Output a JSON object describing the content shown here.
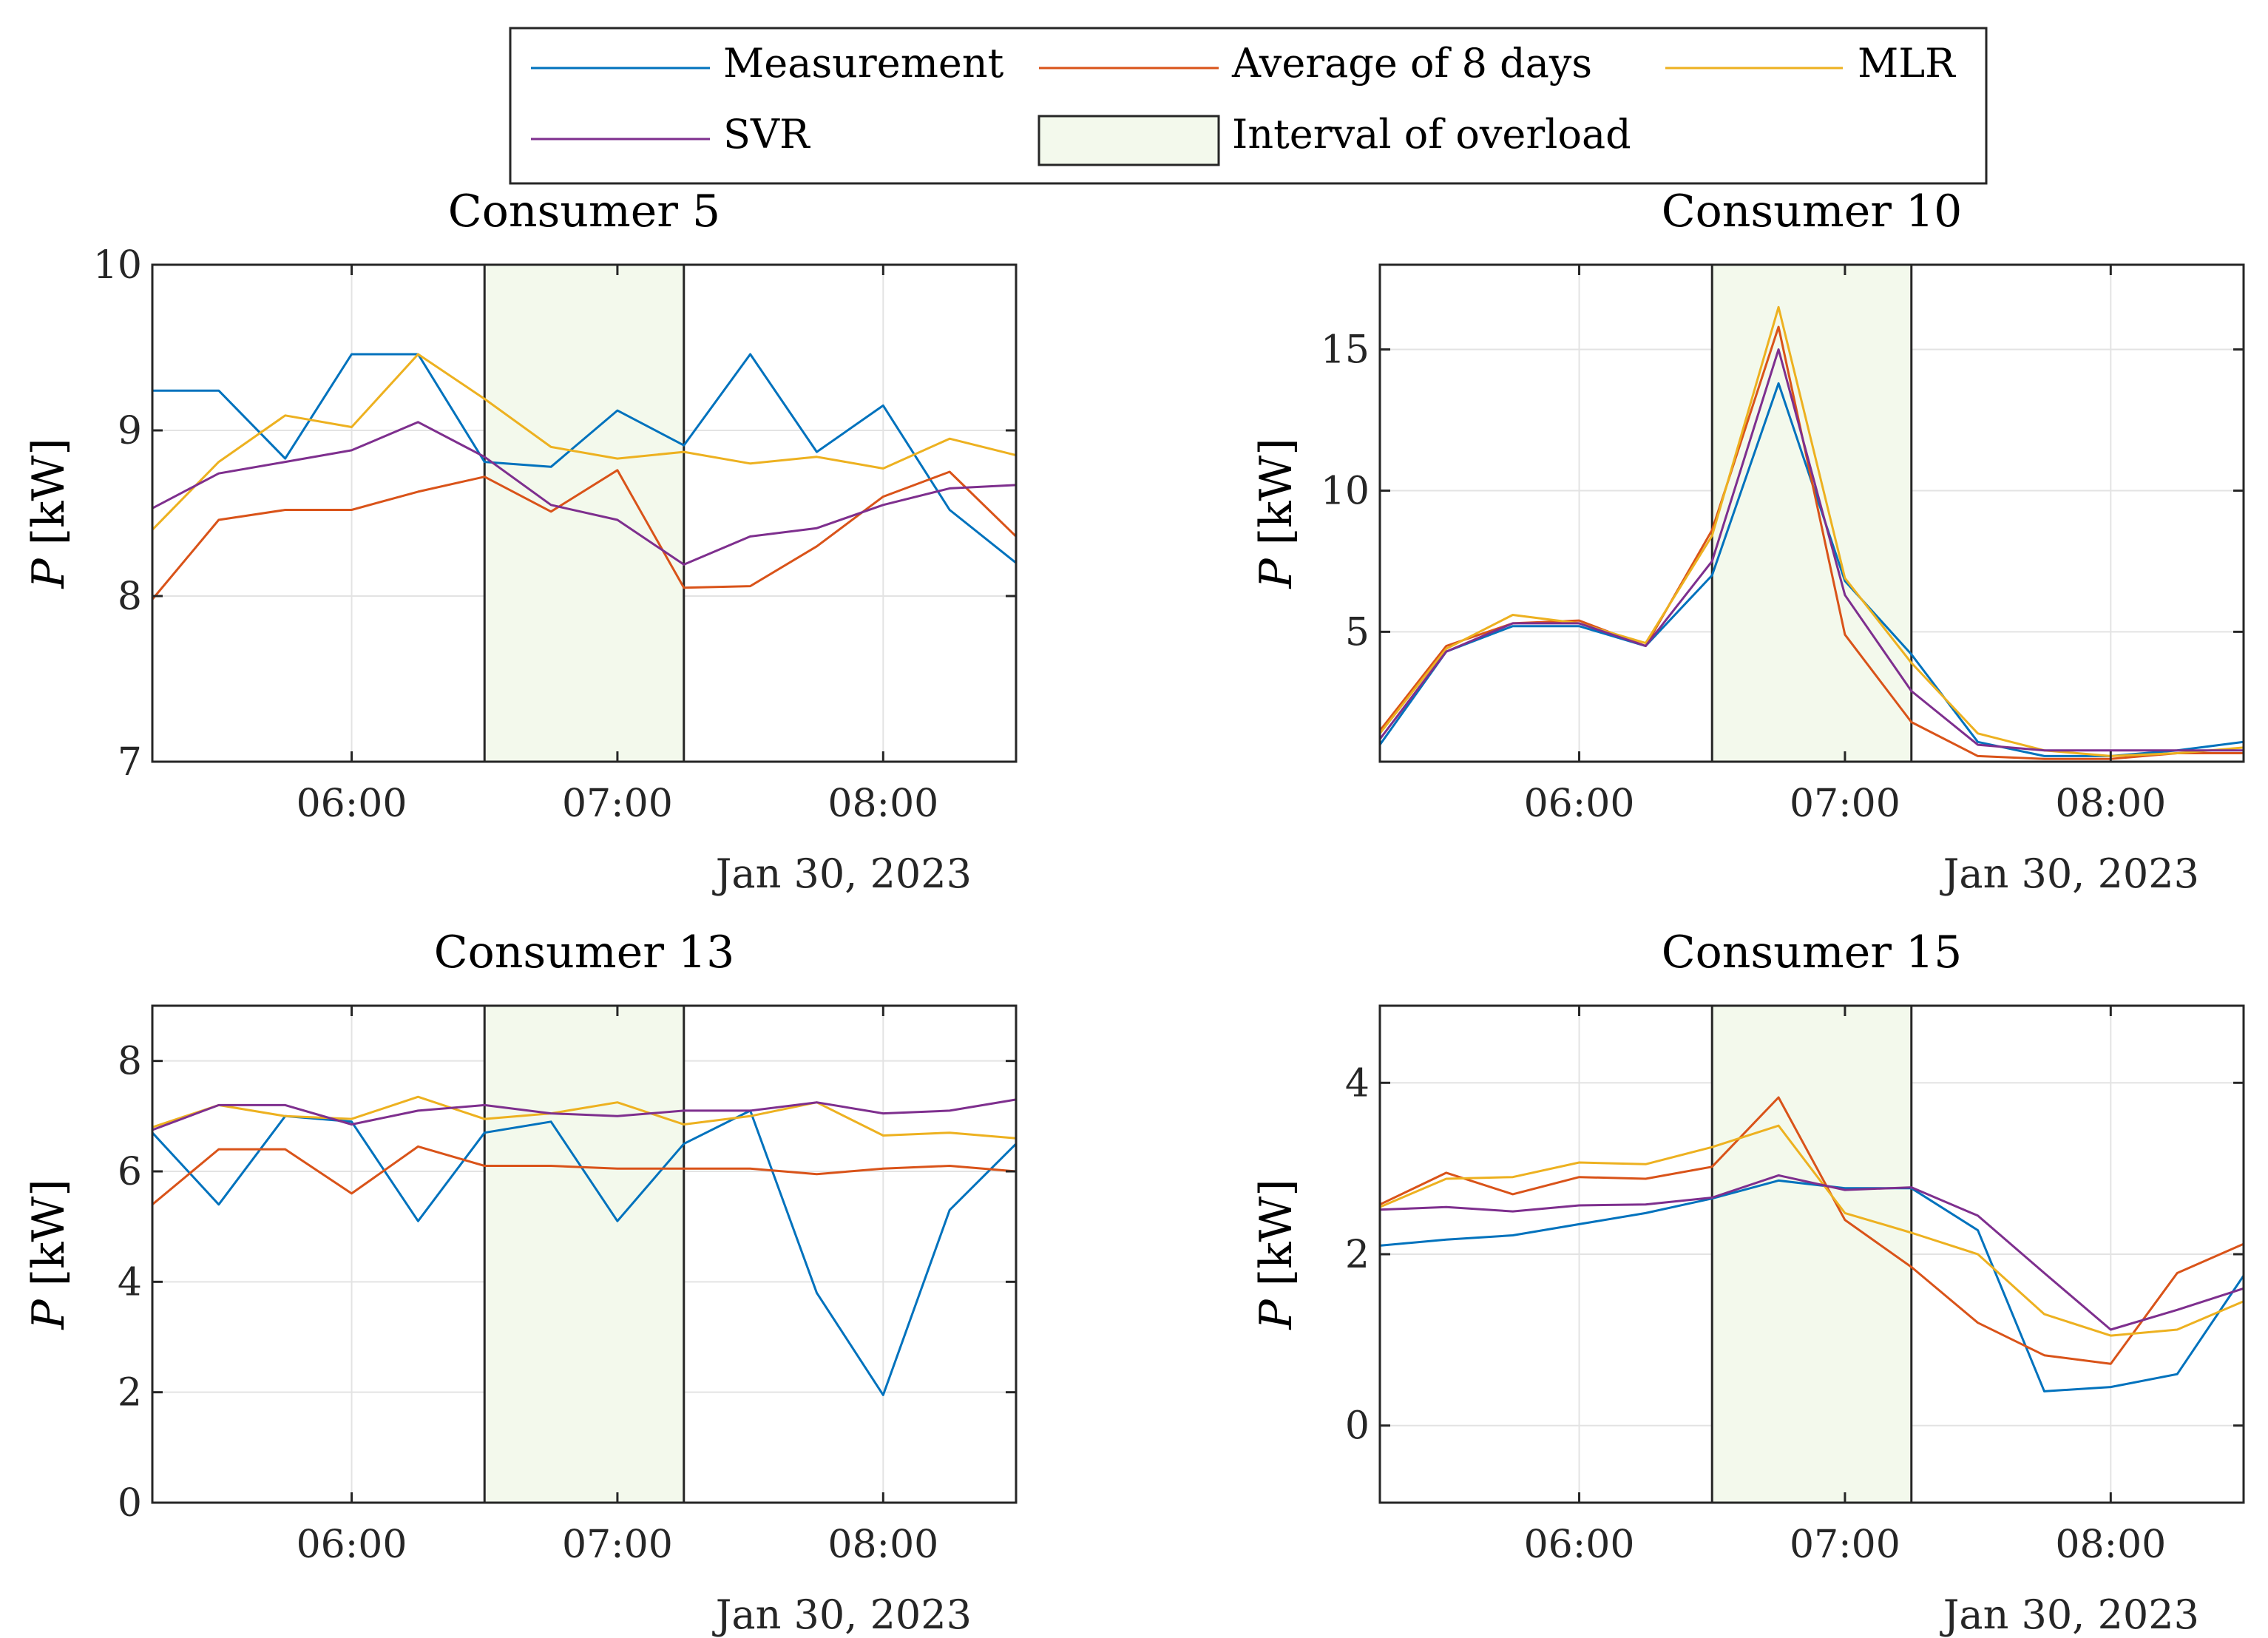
{
  "legend": {
    "items": [
      {
        "label": "Measurement",
        "color": "#0072BD",
        "kind": "line"
      },
      {
        "label": "Average of 8 days",
        "color": "#D95319",
        "kind": "line"
      },
      {
        "label": "MLR",
        "color": "#EDB120",
        "kind": "line"
      },
      {
        "label": "SVR",
        "color": "#7E2F8E",
        "kind": "line"
      },
      {
        "label": "Interval of overload",
        "color": "#F3F9EC",
        "kind": "patch"
      }
    ]
  },
  "chart_data": [
    {
      "type": "line",
      "title": "Consumer 5",
      "xlabel": "",
      "ylabel_var": "P",
      "ylabel_unit": "[kW]",
      "date_label": "Jan 30, 2023",
      "x": [
        5.25,
        5.5,
        5.75,
        6.0,
        6.25,
        6.5,
        6.75,
        7.0,
        7.25,
        7.5,
        7.75,
        8.0,
        8.25,
        8.5
      ],
      "xlim": [
        5.25,
        8.5
      ],
      "xticks": [
        6,
        7,
        8
      ],
      "xtick_labels": [
        "06:00",
        "07:00",
        "08:00"
      ],
      "ylim": [
        7,
        10
      ],
      "yticks": [
        7,
        8,
        9,
        10
      ],
      "ytick_labels": [
        "7",
        "8",
        "9",
        "10"
      ],
      "overload": [
        6.5,
        7.25
      ],
      "series": [
        {
          "name": "Measurement",
          "color": "#0072BD",
          "values": [
            9.24,
            9.24,
            8.83,
            9.46,
            9.46,
            8.81,
            8.78,
            9.12,
            8.91,
            9.46,
            8.87,
            9.15,
            8.52,
            8.2
          ]
        },
        {
          "name": "Average of 8 days",
          "color": "#D95319",
          "values": [
            7.98,
            8.46,
            8.52,
            8.52,
            8.63,
            8.72,
            8.51,
            8.76,
            8.05,
            8.06,
            8.3,
            8.6,
            8.75,
            8.36
          ]
        },
        {
          "name": "MLR",
          "color": "#EDB120",
          "values": [
            8.4,
            8.81,
            9.09,
            9.02,
            9.46,
            9.19,
            8.9,
            8.83,
            8.87,
            8.8,
            8.84,
            8.77,
            8.95,
            8.85
          ]
        },
        {
          "name": "SVR",
          "color": "#7E2F8E",
          "values": [
            8.53,
            8.74,
            8.81,
            8.88,
            9.05,
            8.84,
            8.55,
            8.46,
            8.19,
            8.36,
            8.41,
            8.55,
            8.65,
            8.67
          ]
        }
      ]
    },
    {
      "type": "line",
      "title": "Consumer 10",
      "xlabel": "",
      "ylabel_var": "P",
      "ylabel_unit": "[kW]",
      "date_label": "Jan 30, 2023",
      "x": [
        5.25,
        5.5,
        5.75,
        6.0,
        6.25,
        6.5,
        6.75,
        7.0,
        7.25,
        7.5,
        7.75,
        8.0,
        8.25,
        8.5
      ],
      "xlim": [
        5.25,
        8.5
      ],
      "xticks": [
        6,
        7,
        8
      ],
      "xtick_labels": [
        "06:00",
        "07:00",
        "08:00"
      ],
      "ylim": [
        0.4,
        18.0
      ],
      "yticks": [
        5,
        10,
        15
      ],
      "ytick_labels": [
        "5",
        "10",
        "15"
      ],
      "overload": [
        6.5,
        7.25
      ],
      "series": [
        {
          "name": "Measurement",
          "color": "#0072BD",
          "values": [
            1.0,
            4.3,
            5.2,
            5.2,
            4.5,
            7.0,
            13.8,
            6.8,
            4.2,
            1.1,
            0.6,
            0.6,
            0.8,
            1.1
          ]
        },
        {
          "name": "Average of 8 days",
          "color": "#D95319",
          "values": [
            1.5,
            4.5,
            5.3,
            5.4,
            4.5,
            8.6,
            15.8,
            4.9,
            1.8,
            0.6,
            0.5,
            0.5,
            0.7,
            0.7
          ]
        },
        {
          "name": "MLR",
          "color": "#EDB120",
          "values": [
            1.4,
            4.4,
            5.6,
            5.3,
            4.6,
            8.4,
            16.5,
            6.9,
            3.9,
            1.4,
            0.8,
            0.6,
            0.7,
            0.9
          ]
        },
        {
          "name": "SVR",
          "color": "#7E2F8E",
          "values": [
            1.2,
            4.3,
            5.3,
            5.3,
            4.5,
            7.5,
            15.0,
            6.3,
            2.9,
            1.0,
            0.8,
            0.8,
            0.8,
            0.8
          ]
        }
      ]
    },
    {
      "type": "line",
      "title": "Consumer 13",
      "xlabel": "",
      "ylabel_var": "P",
      "ylabel_unit": "[kW]",
      "date_label": "Jan 30, 2023",
      "x": [
        5.25,
        5.5,
        5.75,
        6.0,
        6.25,
        6.5,
        6.75,
        7.0,
        7.25,
        7.5,
        7.75,
        8.0,
        8.25,
        8.5
      ],
      "xlim": [
        5.25,
        8.5
      ],
      "xticks": [
        6,
        7,
        8
      ],
      "xtick_labels": [
        "06:00",
        "07:00",
        "08:00"
      ],
      "ylim": [
        0,
        9
      ],
      "yticks": [
        0,
        2,
        4,
        6,
        8
      ],
      "ytick_labels": [
        "0",
        "2",
        "4",
        "6",
        "8"
      ],
      "overload": [
        6.5,
        7.25
      ],
      "series": [
        {
          "name": "Measurement",
          "color": "#0072BD",
          "values": [
            6.7,
            5.4,
            7.0,
            6.9,
            5.1,
            6.7,
            6.9,
            5.1,
            6.5,
            7.1,
            3.8,
            1.95,
            5.3,
            6.5
          ]
        },
        {
          "name": "Average of 8 days",
          "color": "#D95319",
          "values": [
            5.4,
            6.4,
            6.4,
            5.6,
            6.45,
            6.1,
            6.1,
            6.05,
            6.05,
            6.05,
            5.95,
            6.05,
            6.1,
            6.0
          ]
        },
        {
          "name": "MLR",
          "color": "#EDB120",
          "values": [
            6.8,
            7.2,
            7.0,
            6.95,
            7.35,
            6.95,
            7.05,
            7.25,
            6.85,
            7.0,
            7.25,
            6.65,
            6.7,
            6.6
          ]
        },
        {
          "name": "SVR",
          "color": "#7E2F8E",
          "values": [
            6.75,
            7.2,
            7.2,
            6.85,
            7.1,
            7.2,
            7.05,
            7.0,
            7.1,
            7.1,
            7.25,
            7.05,
            7.1,
            7.3
          ]
        }
      ]
    },
    {
      "type": "line",
      "title": "Consumer 15",
      "xlabel": "",
      "ylabel_var": "P",
      "ylabel_unit": "[kW]",
      "date_label": "Jan 30, 2023",
      "x": [
        5.25,
        5.5,
        5.75,
        6.0,
        6.25,
        6.5,
        6.75,
        7.0,
        7.25,
        7.5,
        7.75,
        8.0,
        8.25,
        8.5
      ],
      "xlim": [
        5.25,
        8.5
      ],
      "xticks": [
        6,
        7,
        8
      ],
      "xtick_labels": [
        "06:00",
        "07:00",
        "08:00"
      ],
      "ylim": [
        -0.9,
        4.9
      ],
      "yticks": [
        0,
        2,
        4
      ],
      "ytick_labels": [
        "0",
        "2",
        "4"
      ],
      "overload": [
        6.5,
        7.25
      ],
      "series": [
        {
          "name": "Measurement",
          "color": "#0072BD",
          "values": [
            2.1,
            2.17,
            2.22,
            2.35,
            2.48,
            2.65,
            2.86,
            2.77,
            2.77,
            2.28,
            0.4,
            0.45,
            0.6,
            1.75
          ]
        },
        {
          "name": "Average of 8 days",
          "color": "#D95319",
          "values": [
            2.58,
            2.95,
            2.7,
            2.9,
            2.88,
            3.02,
            3.83,
            2.4,
            1.85,
            1.2,
            0.82,
            0.72,
            1.78,
            2.12
          ]
        },
        {
          "name": "MLR",
          "color": "#EDB120",
          "values": [
            2.55,
            2.88,
            2.9,
            3.07,
            3.05,
            3.25,
            3.5,
            2.48,
            2.25,
            2.0,
            1.3,
            1.05,
            1.12,
            1.45
          ]
        },
        {
          "name": "SVR",
          "color": "#7E2F8E",
          "values": [
            2.52,
            2.55,
            2.5,
            2.57,
            2.58,
            2.66,
            2.92,
            2.75,
            2.78,
            2.45,
            1.78,
            1.12,
            1.35,
            1.6
          ]
        }
      ]
    }
  ]
}
